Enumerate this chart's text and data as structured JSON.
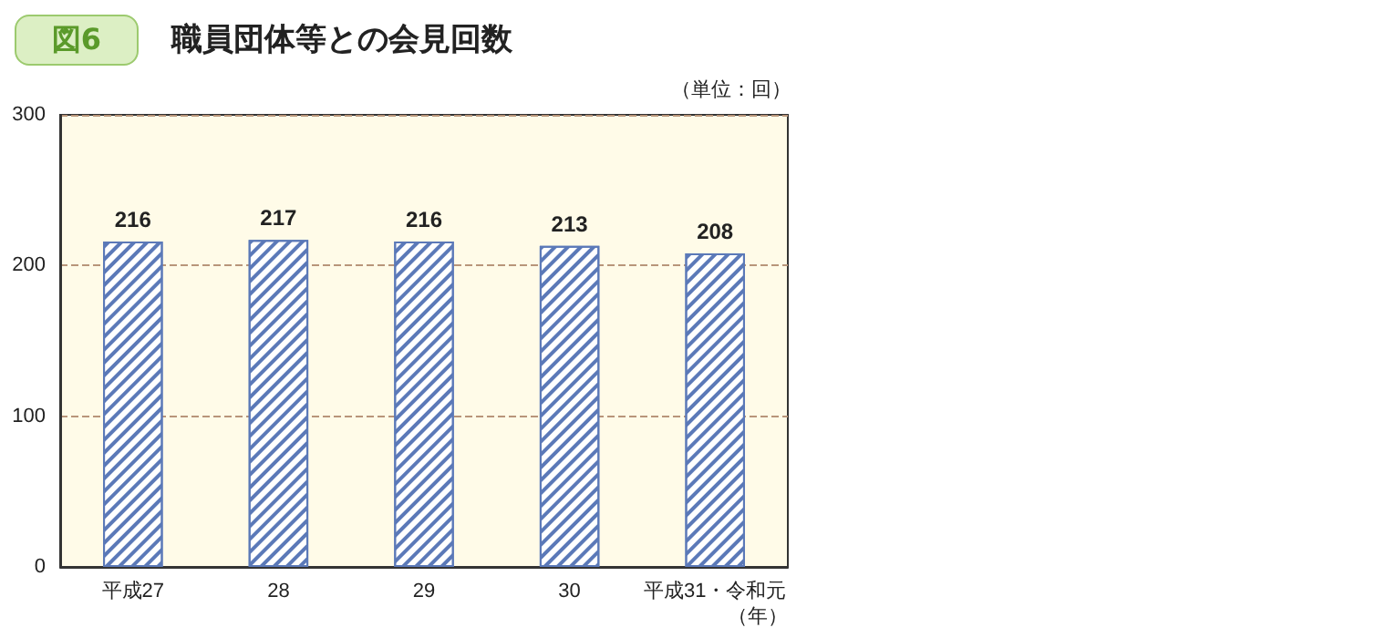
{
  "chart_data": {
    "type": "bar",
    "title": "職員団体等との会見回数",
    "annotations": [
      "図6"
    ],
    "ylabel": "（単位：回）",
    "xlabel": "（年）",
    "categories": [
      "平成27",
      "28",
      "29",
      "30",
      "平成31・令和元"
    ],
    "values": [
      216,
      217,
      216,
      213,
      208
    ],
    "color": "#5b79b8",
    "ylim": [
      0,
      300
    ],
    "yticks": [
      0,
      100,
      200,
      300
    ],
    "grid": "y",
    "data_labels": true
  }
}
